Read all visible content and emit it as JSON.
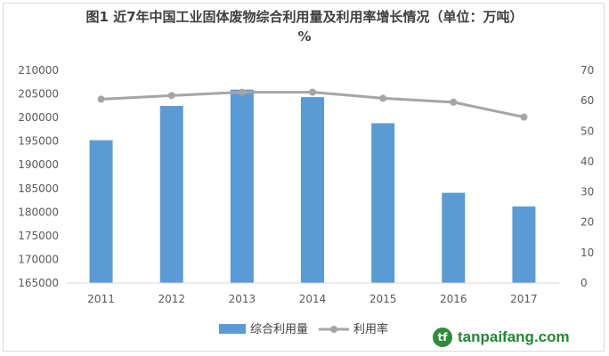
{
  "chart_data": {
    "type": "bar",
    "title_line1": "图1 近7年中国工业固体废物综合利用量及利用率增长情况（单位：万吨）",
    "title_line2": "%",
    "categories": [
      "2011",
      "2012",
      "2013",
      "2014",
      "2015",
      "2016",
      "2017"
    ],
    "series": [
      {
        "name": "综合利用量",
        "type": "bar",
        "axis": "left",
        "color": "#5b9bd5",
        "values": [
          195215,
          202462,
          205916,
          204330,
          198807,
          184096,
          181187
        ]
      },
      {
        "name": "利用率",
        "type": "line",
        "axis": "right",
        "color": "#a5a5a5",
        "values": [
          60.5,
          61.7,
          62.8,
          62.8,
          60.8,
          59.5,
          54.6
        ]
      }
    ],
    "y_left": {
      "min": 165000,
      "max": 210000,
      "step": 5000
    },
    "y_right": {
      "min": 0,
      "max": 70,
      "step": 10
    },
    "legend_position": "bottom",
    "grid": false
  },
  "watermark": {
    "logo": "tf",
    "text": "tanpaifang.com"
  }
}
